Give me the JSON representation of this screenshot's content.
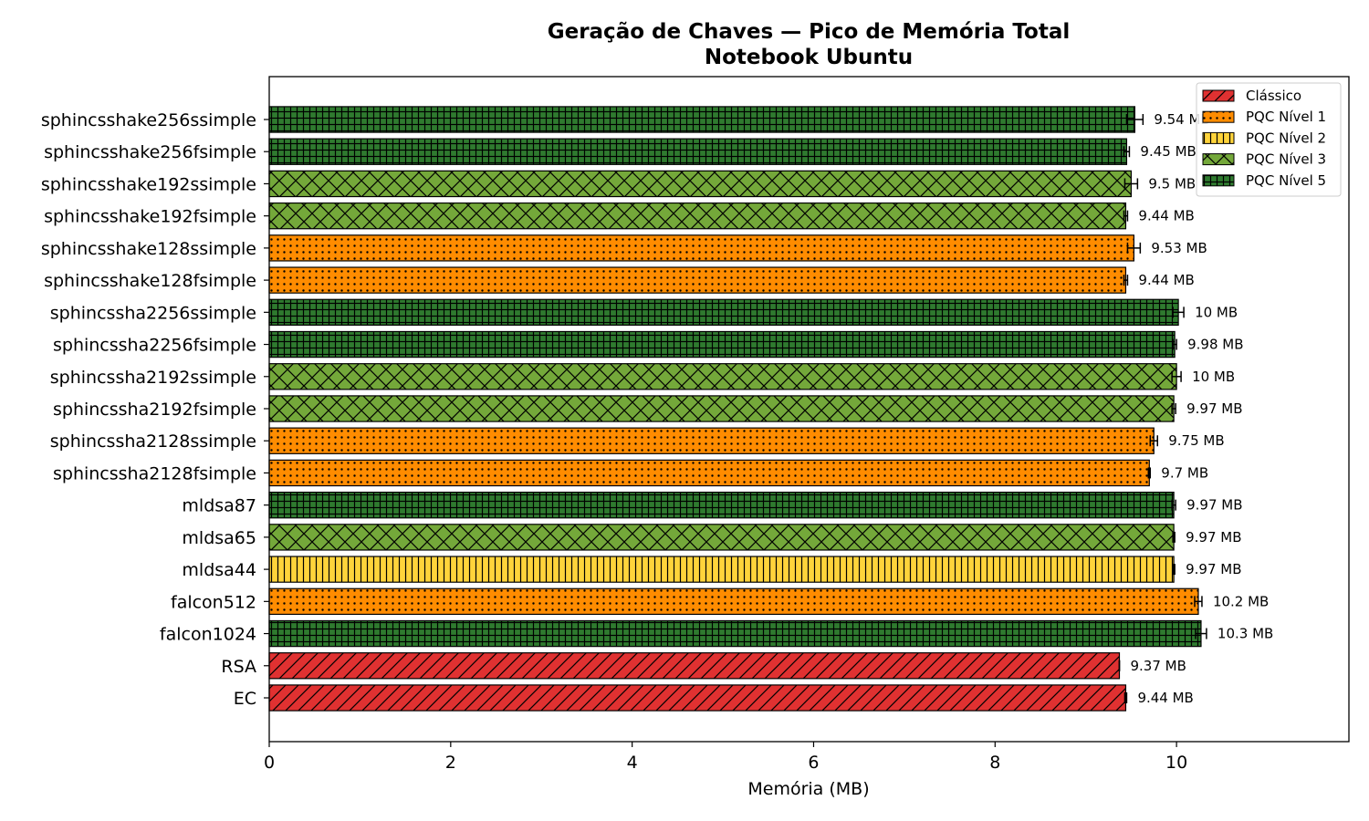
{
  "chart_data": {
    "type": "bar",
    "orientation": "horizontal",
    "title": "Geração de Chaves — Pico de Memória Total",
    "subtitle": "Notebook Ubuntu",
    "xlabel": "Memória (MB)",
    "ylabel": "",
    "xlim": [
      0,
      11.9
    ],
    "xticks": [
      "0",
      "2",
      "4",
      "6",
      "8",
      "10"
    ],
    "grid": false,
    "legend_position": "top-right",
    "categories_meta": {
      "classic": {
        "label": "Clássico",
        "color": "#e03131",
        "pattern": "diagonal"
      },
      "l1": {
        "label": "PQC Nível 1",
        "color": "#ff8c00",
        "pattern": "dots"
      },
      "l2": {
        "label": "PQC Nível 2",
        "color": "#ffd43b",
        "pattern": "vertical"
      },
      "l3": {
        "label": "PQC Nível 3",
        "color": "#74a83a",
        "pattern": "crosshatch"
      },
      "l5": {
        "label": "PQC Nível 5",
        "color": "#2f7a2f",
        "pattern": "grid"
      }
    },
    "legend_order": [
      "classic",
      "l1",
      "l2",
      "l3",
      "l5"
    ],
    "bars": [
      {
        "name": "sphincsshake256ssimple",
        "value": 9.54,
        "error": 0.09,
        "category": "l5",
        "label": "9.54 MB"
      },
      {
        "name": "sphincsshake256fsimple",
        "value": 9.45,
        "error": 0.03,
        "category": "l5",
        "label": "9.45 MB"
      },
      {
        "name": "sphincsshake192ssimple",
        "value": 9.5,
        "error": 0.07,
        "category": "l3",
        "label": "9.5 MB"
      },
      {
        "name": "sphincsshake192fsimple",
        "value": 9.44,
        "error": 0.02,
        "category": "l3",
        "label": "9.44 MB"
      },
      {
        "name": "sphincsshake128ssimple",
        "value": 9.53,
        "error": 0.07,
        "category": "l1",
        "label": "9.53 MB"
      },
      {
        "name": "sphincsshake128fsimple",
        "value": 9.44,
        "error": 0.02,
        "category": "l1",
        "label": "9.44 MB"
      },
      {
        "name": "sphincssha2256ssimple",
        "value": 10.02,
        "error": 0.06,
        "category": "l5",
        "label": "10 MB"
      },
      {
        "name": "sphincssha2256fsimple",
        "value": 9.98,
        "error": 0.02,
        "category": "l5",
        "label": "9.98 MB"
      },
      {
        "name": "sphincssha2192ssimple",
        "value": 10.0,
        "error": 0.05,
        "category": "l3",
        "label": "10 MB"
      },
      {
        "name": "sphincssha2192fsimple",
        "value": 9.97,
        "error": 0.02,
        "category": "l3",
        "label": "9.97 MB"
      },
      {
        "name": "sphincssha2128ssimple",
        "value": 9.75,
        "error": 0.04,
        "category": "l1",
        "label": "9.75 MB"
      },
      {
        "name": "sphincssha2128fsimple",
        "value": 9.7,
        "error": 0.01,
        "category": "l1",
        "label": "9.7 MB"
      },
      {
        "name": "mldsa87",
        "value": 9.97,
        "error": 0.02,
        "category": "l5",
        "label": "9.97 MB"
      },
      {
        "name": "mldsa65",
        "value": 9.97,
        "error": 0.01,
        "category": "l3",
        "label": "9.97 MB"
      },
      {
        "name": "mldsa44",
        "value": 9.97,
        "error": 0.01,
        "category": "l2",
        "label": "9.97 MB"
      },
      {
        "name": "falcon512",
        "value": 10.24,
        "error": 0.04,
        "category": "l1",
        "label": "10.2 MB"
      },
      {
        "name": "falcon1024",
        "value": 10.27,
        "error": 0.06,
        "category": "l5",
        "label": "10.3 MB"
      },
      {
        "name": "RSA",
        "value": 9.37,
        "error": 0.0,
        "category": "classic",
        "label": "9.37 MB"
      },
      {
        "name": "EC",
        "value": 9.44,
        "error": 0.01,
        "category": "classic",
        "label": "9.44 MB"
      }
    ]
  }
}
